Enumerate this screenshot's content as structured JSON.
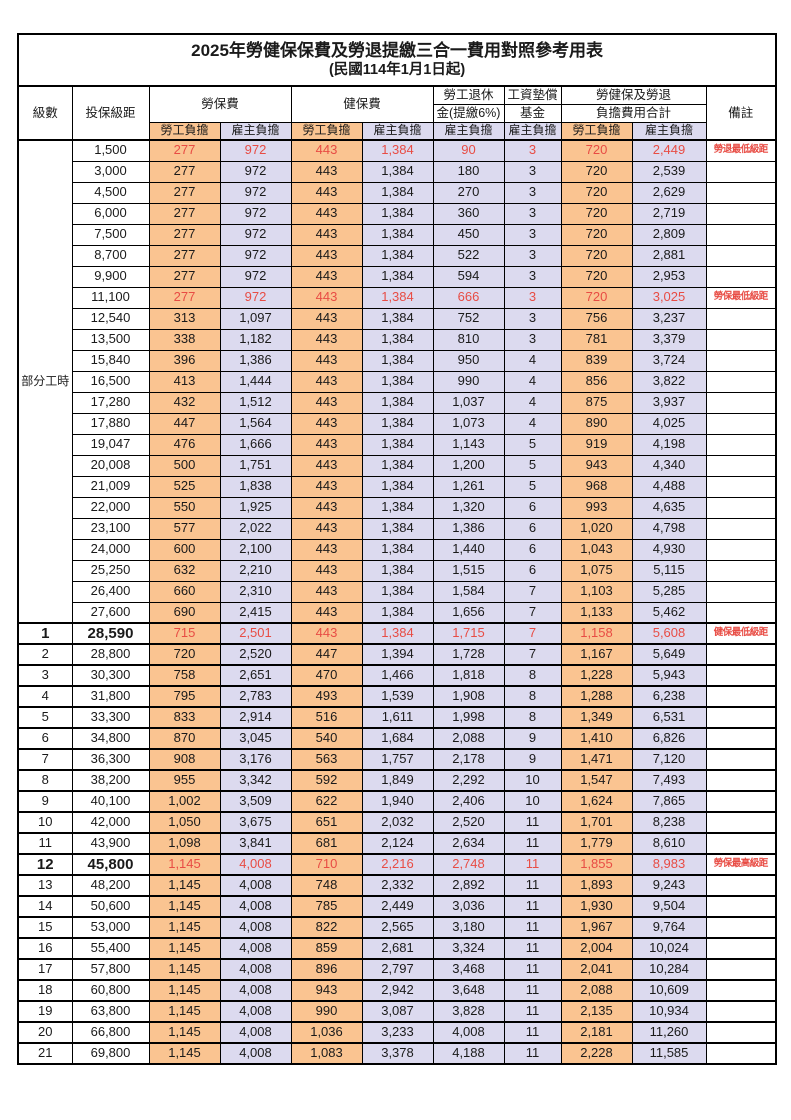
{
  "title": "2025年勞健保保費及勞退提繳三合一費用對照參考用表",
  "subtitle": "(民國114年1月1日起)",
  "colors": {
    "employee_fill": "#FAC491",
    "employer_fill": "#DCDAEF",
    "highlight_red": "#E84C44",
    "border": "#000000"
  },
  "header": {
    "level": "級數",
    "bracket": "投保級距",
    "labor": "勞保費",
    "health": "健保費",
    "pension_line1": "勞工退休",
    "pension_line2": "金(提繳6%)",
    "fund_line1": "工資墊償",
    "fund_line2": "基金",
    "total_line1": "勞健保及勞退",
    "total_line2": "負擔費用合計",
    "remark": "備註",
    "employee": "勞工負擔",
    "employer": "雇主負擔"
  },
  "part_time": {
    "label": "部分工時",
    "row_count": 23
  },
  "rows": [
    {
      "b": "1,500",
      "v": [
        "277",
        "972",
        "443",
        "1,384",
        "90",
        "3",
        "720",
        "2,449"
      ],
      "r": "勞退最低級距",
      "red": true
    },
    {
      "b": "3,000",
      "v": [
        "277",
        "972",
        "443",
        "1,384",
        "180",
        "3",
        "720",
        "2,539"
      ]
    },
    {
      "b": "4,500",
      "v": [
        "277",
        "972",
        "443",
        "1,384",
        "270",
        "3",
        "720",
        "2,629"
      ]
    },
    {
      "b": "6,000",
      "v": [
        "277",
        "972",
        "443",
        "1,384",
        "360",
        "3",
        "720",
        "2,719"
      ]
    },
    {
      "b": "7,500",
      "v": [
        "277",
        "972",
        "443",
        "1,384",
        "450",
        "3",
        "720",
        "2,809"
      ]
    },
    {
      "b": "8,700",
      "v": [
        "277",
        "972",
        "443",
        "1,384",
        "522",
        "3",
        "720",
        "2,881"
      ]
    },
    {
      "b": "9,900",
      "v": [
        "277",
        "972",
        "443",
        "1,384",
        "594",
        "3",
        "720",
        "2,953"
      ]
    },
    {
      "b": "11,100",
      "v": [
        "277",
        "972",
        "443",
        "1,384",
        "666",
        "3",
        "720",
        "3,025"
      ],
      "r": "勞保最低級距",
      "red": true
    },
    {
      "b": "12,540",
      "v": [
        "313",
        "1,097",
        "443",
        "1,384",
        "752",
        "3",
        "756",
        "3,237"
      ]
    },
    {
      "b": "13,500",
      "v": [
        "338",
        "1,182",
        "443",
        "1,384",
        "810",
        "3",
        "781",
        "3,379"
      ]
    },
    {
      "b": "15,840",
      "v": [
        "396",
        "1,386",
        "443",
        "1,384",
        "950",
        "4",
        "839",
        "3,724"
      ]
    },
    {
      "b": "16,500",
      "v": [
        "413",
        "1,444",
        "443",
        "1,384",
        "990",
        "4",
        "856",
        "3,822"
      ]
    },
    {
      "b": "17,280",
      "v": [
        "432",
        "1,512",
        "443",
        "1,384",
        "1,037",
        "4",
        "875",
        "3,937"
      ]
    },
    {
      "b": "17,880",
      "v": [
        "447",
        "1,564",
        "443",
        "1,384",
        "1,073",
        "4",
        "890",
        "4,025"
      ]
    },
    {
      "b": "19,047",
      "v": [
        "476",
        "1,666",
        "443",
        "1,384",
        "1,143",
        "5",
        "919",
        "4,198"
      ]
    },
    {
      "b": "20,008",
      "v": [
        "500",
        "1,751",
        "443",
        "1,384",
        "1,200",
        "5",
        "943",
        "4,340"
      ]
    },
    {
      "b": "21,009",
      "v": [
        "525",
        "1,838",
        "443",
        "1,384",
        "1,261",
        "5",
        "968",
        "4,488"
      ]
    },
    {
      "b": "22,000",
      "v": [
        "550",
        "1,925",
        "443",
        "1,384",
        "1,320",
        "6",
        "993",
        "4,635"
      ]
    },
    {
      "b": "23,100",
      "v": [
        "577",
        "2,022",
        "443",
        "1,384",
        "1,386",
        "6",
        "1,020",
        "4,798"
      ]
    },
    {
      "b": "24,000",
      "v": [
        "600",
        "2,100",
        "443",
        "1,384",
        "1,440",
        "6",
        "1,043",
        "4,930"
      ]
    },
    {
      "b": "25,250",
      "v": [
        "632",
        "2,210",
        "443",
        "1,384",
        "1,515",
        "6",
        "1,075",
        "5,115"
      ]
    },
    {
      "b": "26,400",
      "v": [
        "660",
        "2,310",
        "443",
        "1,384",
        "1,584",
        "7",
        "1,103",
        "5,285"
      ]
    },
    {
      "b": "27,600",
      "v": [
        "690",
        "2,415",
        "443",
        "1,384",
        "1,656",
        "7",
        "1,133",
        "5,462"
      ]
    },
    {
      "lvl": "1",
      "b": "28,590",
      "v": [
        "715",
        "2,501",
        "443",
        "1,384",
        "1,715",
        "7",
        "1,158",
        "5,608"
      ],
      "r": "健保最低級距",
      "red": true,
      "big": true
    },
    {
      "lvl": "2",
      "b": "28,800",
      "v": [
        "720",
        "2,520",
        "447",
        "1,394",
        "1,728",
        "7",
        "1,167",
        "5,649"
      ]
    },
    {
      "lvl": "3",
      "b": "30,300",
      "v": [
        "758",
        "2,651",
        "470",
        "1,466",
        "1,818",
        "8",
        "1,228",
        "5,943"
      ]
    },
    {
      "lvl": "4",
      "b": "31,800",
      "v": [
        "795",
        "2,783",
        "493",
        "1,539",
        "1,908",
        "8",
        "1,288",
        "6,238"
      ]
    },
    {
      "lvl": "5",
      "b": "33,300",
      "v": [
        "833",
        "2,914",
        "516",
        "1,611",
        "1,998",
        "8",
        "1,349",
        "6,531"
      ]
    },
    {
      "lvl": "6",
      "b": "34,800",
      "v": [
        "870",
        "3,045",
        "540",
        "1,684",
        "2,088",
        "9",
        "1,410",
        "6,826"
      ]
    },
    {
      "lvl": "7",
      "b": "36,300",
      "v": [
        "908",
        "3,176",
        "563",
        "1,757",
        "2,178",
        "9",
        "1,471",
        "7,120"
      ]
    },
    {
      "lvl": "8",
      "b": "38,200",
      "v": [
        "955",
        "3,342",
        "592",
        "1,849",
        "2,292",
        "10",
        "1,547",
        "7,493"
      ]
    },
    {
      "lvl": "9",
      "b": "40,100",
      "v": [
        "1,002",
        "3,509",
        "622",
        "1,940",
        "2,406",
        "10",
        "1,624",
        "7,865"
      ]
    },
    {
      "lvl": "10",
      "b": "42,000",
      "v": [
        "1,050",
        "3,675",
        "651",
        "2,032",
        "2,520",
        "11",
        "1,701",
        "8,238"
      ]
    },
    {
      "lvl": "11",
      "b": "43,900",
      "v": [
        "1,098",
        "3,841",
        "681",
        "2,124",
        "2,634",
        "11",
        "1,779",
        "8,610"
      ]
    },
    {
      "lvl": "12",
      "b": "45,800",
      "v": [
        "1,145",
        "4,008",
        "710",
        "2,216",
        "2,748",
        "11",
        "1,855",
        "8,983"
      ],
      "r": "勞保最高級距",
      "red": true,
      "big": true
    },
    {
      "lvl": "13",
      "b": "48,200",
      "v": [
        "1,145",
        "4,008",
        "748",
        "2,332",
        "2,892",
        "11",
        "1,893",
        "9,243"
      ]
    },
    {
      "lvl": "14",
      "b": "50,600",
      "v": [
        "1,145",
        "4,008",
        "785",
        "2,449",
        "3,036",
        "11",
        "1,930",
        "9,504"
      ]
    },
    {
      "lvl": "15",
      "b": "53,000",
      "v": [
        "1,145",
        "4,008",
        "822",
        "2,565",
        "3,180",
        "11",
        "1,967",
        "9,764"
      ]
    },
    {
      "lvl": "16",
      "b": "55,400",
      "v": [
        "1,145",
        "4,008",
        "859",
        "2,681",
        "3,324",
        "11",
        "2,004",
        "10,024"
      ]
    },
    {
      "lvl": "17",
      "b": "57,800",
      "v": [
        "1,145",
        "4,008",
        "896",
        "2,797",
        "3,468",
        "11",
        "2,041",
        "10,284"
      ]
    },
    {
      "lvl": "18",
      "b": "60,800",
      "v": [
        "1,145",
        "4,008",
        "943",
        "2,942",
        "3,648",
        "11",
        "2,088",
        "10,609"
      ]
    },
    {
      "lvl": "19",
      "b": "63,800",
      "v": [
        "1,145",
        "4,008",
        "990",
        "3,087",
        "3,828",
        "11",
        "2,135",
        "10,934"
      ]
    },
    {
      "lvl": "20",
      "b": "66,800",
      "v": [
        "1,145",
        "4,008",
        "1,036",
        "3,233",
        "4,008",
        "11",
        "2,181",
        "11,260"
      ]
    },
    {
      "lvl": "21",
      "b": "69,800",
      "v": [
        "1,145",
        "4,008",
        "1,083",
        "3,378",
        "4,188",
        "11",
        "2,228",
        "11,585"
      ]
    }
  ]
}
